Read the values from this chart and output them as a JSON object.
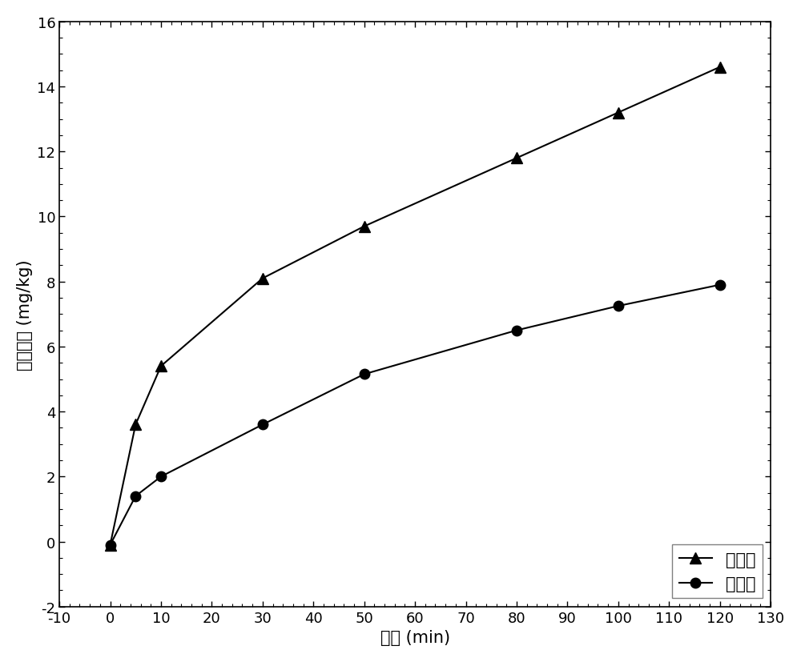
{
  "series1_label": "改性后",
  "series2_label": "未改性",
  "series1_x": [
    0,
    5,
    10,
    30,
    50,
    80,
    100,
    120
  ],
  "series1_y": [
    -0.1,
    3.6,
    5.4,
    8.1,
    9.7,
    11.8,
    13.2,
    14.6
  ],
  "series2_x": [
    0,
    5,
    10,
    30,
    50,
    80,
    100,
    120
  ],
  "series2_y": [
    -0.1,
    1.4,
    2.0,
    3.6,
    5.15,
    6.5,
    7.25,
    7.9
  ],
  "xlabel": "时间 (min)",
  "ylabel": "吸附容量 (mg/kg)",
  "xlim": [
    -10,
    130
  ],
  "ylim": [
    -2,
    16
  ],
  "xticks": [
    -10,
    0,
    10,
    20,
    30,
    40,
    50,
    60,
    70,
    80,
    90,
    100,
    110,
    120,
    130
  ],
  "yticks": [
    -2,
    0,
    2,
    4,
    6,
    8,
    10,
    12,
    14,
    16
  ],
  "line_color": "#000000",
  "marker_size1": 10,
  "marker_size2": 9,
  "legend_loc": "lower right",
  "label_fontsize": 15,
  "tick_fontsize": 13
}
